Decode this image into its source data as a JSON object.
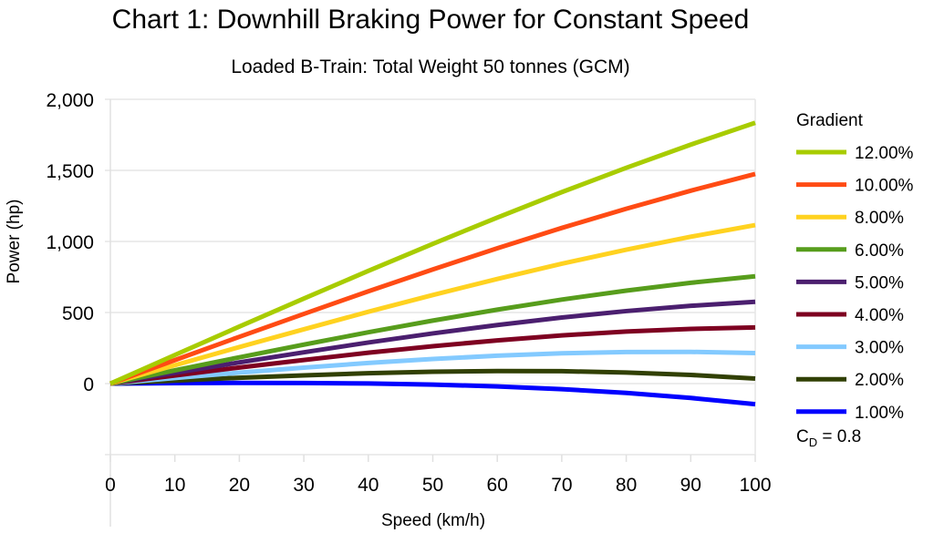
{
  "chart_data": {
    "type": "line",
    "title": "Chart 1: Downhill Braking Power for Constant Speed",
    "subtitle": "Loaded B-Train: Total Weight 50 tonnes (GCM)",
    "xlabel": "Speed (km/h)",
    "ylabel": "Power (hp)",
    "xlim": [
      0,
      100
    ],
    "ylim": [
      -500,
      2000
    ],
    "x_ticks": [
      "0",
      "10",
      "20",
      "30",
      "40",
      "50",
      "60",
      "70",
      "80",
      "90",
      "100"
    ],
    "y_ticks": [
      {
        "value": 2000,
        "label": "2,000"
      },
      {
        "value": 1500,
        "label": "1,500"
      },
      {
        "value": 1000,
        "label": "1,000"
      },
      {
        "value": 500,
        "label": "500"
      },
      {
        "value": 0,
        "label": "0"
      },
      {
        "value": -500,
        "label": ""
      }
    ],
    "grid": true,
    "legend": {
      "title": "Gradient",
      "position": "right"
    },
    "annotation": {
      "main": "C",
      "sub": "D",
      "rest": " = 0.8"
    },
    "x": [
      0,
      10,
      20,
      30,
      40,
      50,
      60,
      70,
      80,
      90,
      100
    ],
    "series": [
      {
        "name": "12.00%",
        "color": "#a8cc00",
        "values": [
          0,
          201,
          401,
          598,
          793,
          983,
          1168,
          1347,
          1518,
          1681,
          1835
        ]
      },
      {
        "name": "10.00%",
        "color": "#ff4b14",
        "values": [
          0,
          165,
          329,
          490,
          649,
          803,
          952,
          1095,
          1230,
          1357,
          1475
        ]
      },
      {
        "name": "8.00%",
        "color": "#ffd220",
        "values": [
          0,
          129,
          257,
          382,
          505,
          623,
          736,
          843,
          942,
          1033,
          1115
        ]
      },
      {
        "name": "6.00%",
        "color": "#579d1c",
        "values": [
          0,
          93,
          185,
          274,
          361,
          443,
          520,
          591,
          654,
          709,
          755
        ]
      },
      {
        "name": "5.00%",
        "color": "#4b1f6f",
        "values": [
          0,
          75,
          149,
          220,
          289,
          353,
          412,
          465,
          510,
          547,
          575
        ]
      },
      {
        "name": "4.00%",
        "color": "#7e0021",
        "values": [
          0,
          57,
          113,
          166,
          217,
          263,
          304,
          339,
          366,
          385,
          395
        ]
      },
      {
        "name": "3.00%",
        "color": "#83caff",
        "values": [
          0,
          39,
          77,
          112,
          145,
          173,
          196,
          213,
          222,
          223,
          215
        ]
      },
      {
        "name": "2.00%",
        "color": "#314004",
        "values": [
          0,
          21,
          41,
          58,
          73,
          83,
          88,
          87,
          78,
          61,
          35
        ]
      },
      {
        "name": "1.00%",
        "color": "#0000ff",
        "values": [
          0,
          3,
          5,
          4,
          1,
          -7,
          -20,
          -39,
          -66,
          -101,
          -145
        ]
      }
    ]
  }
}
